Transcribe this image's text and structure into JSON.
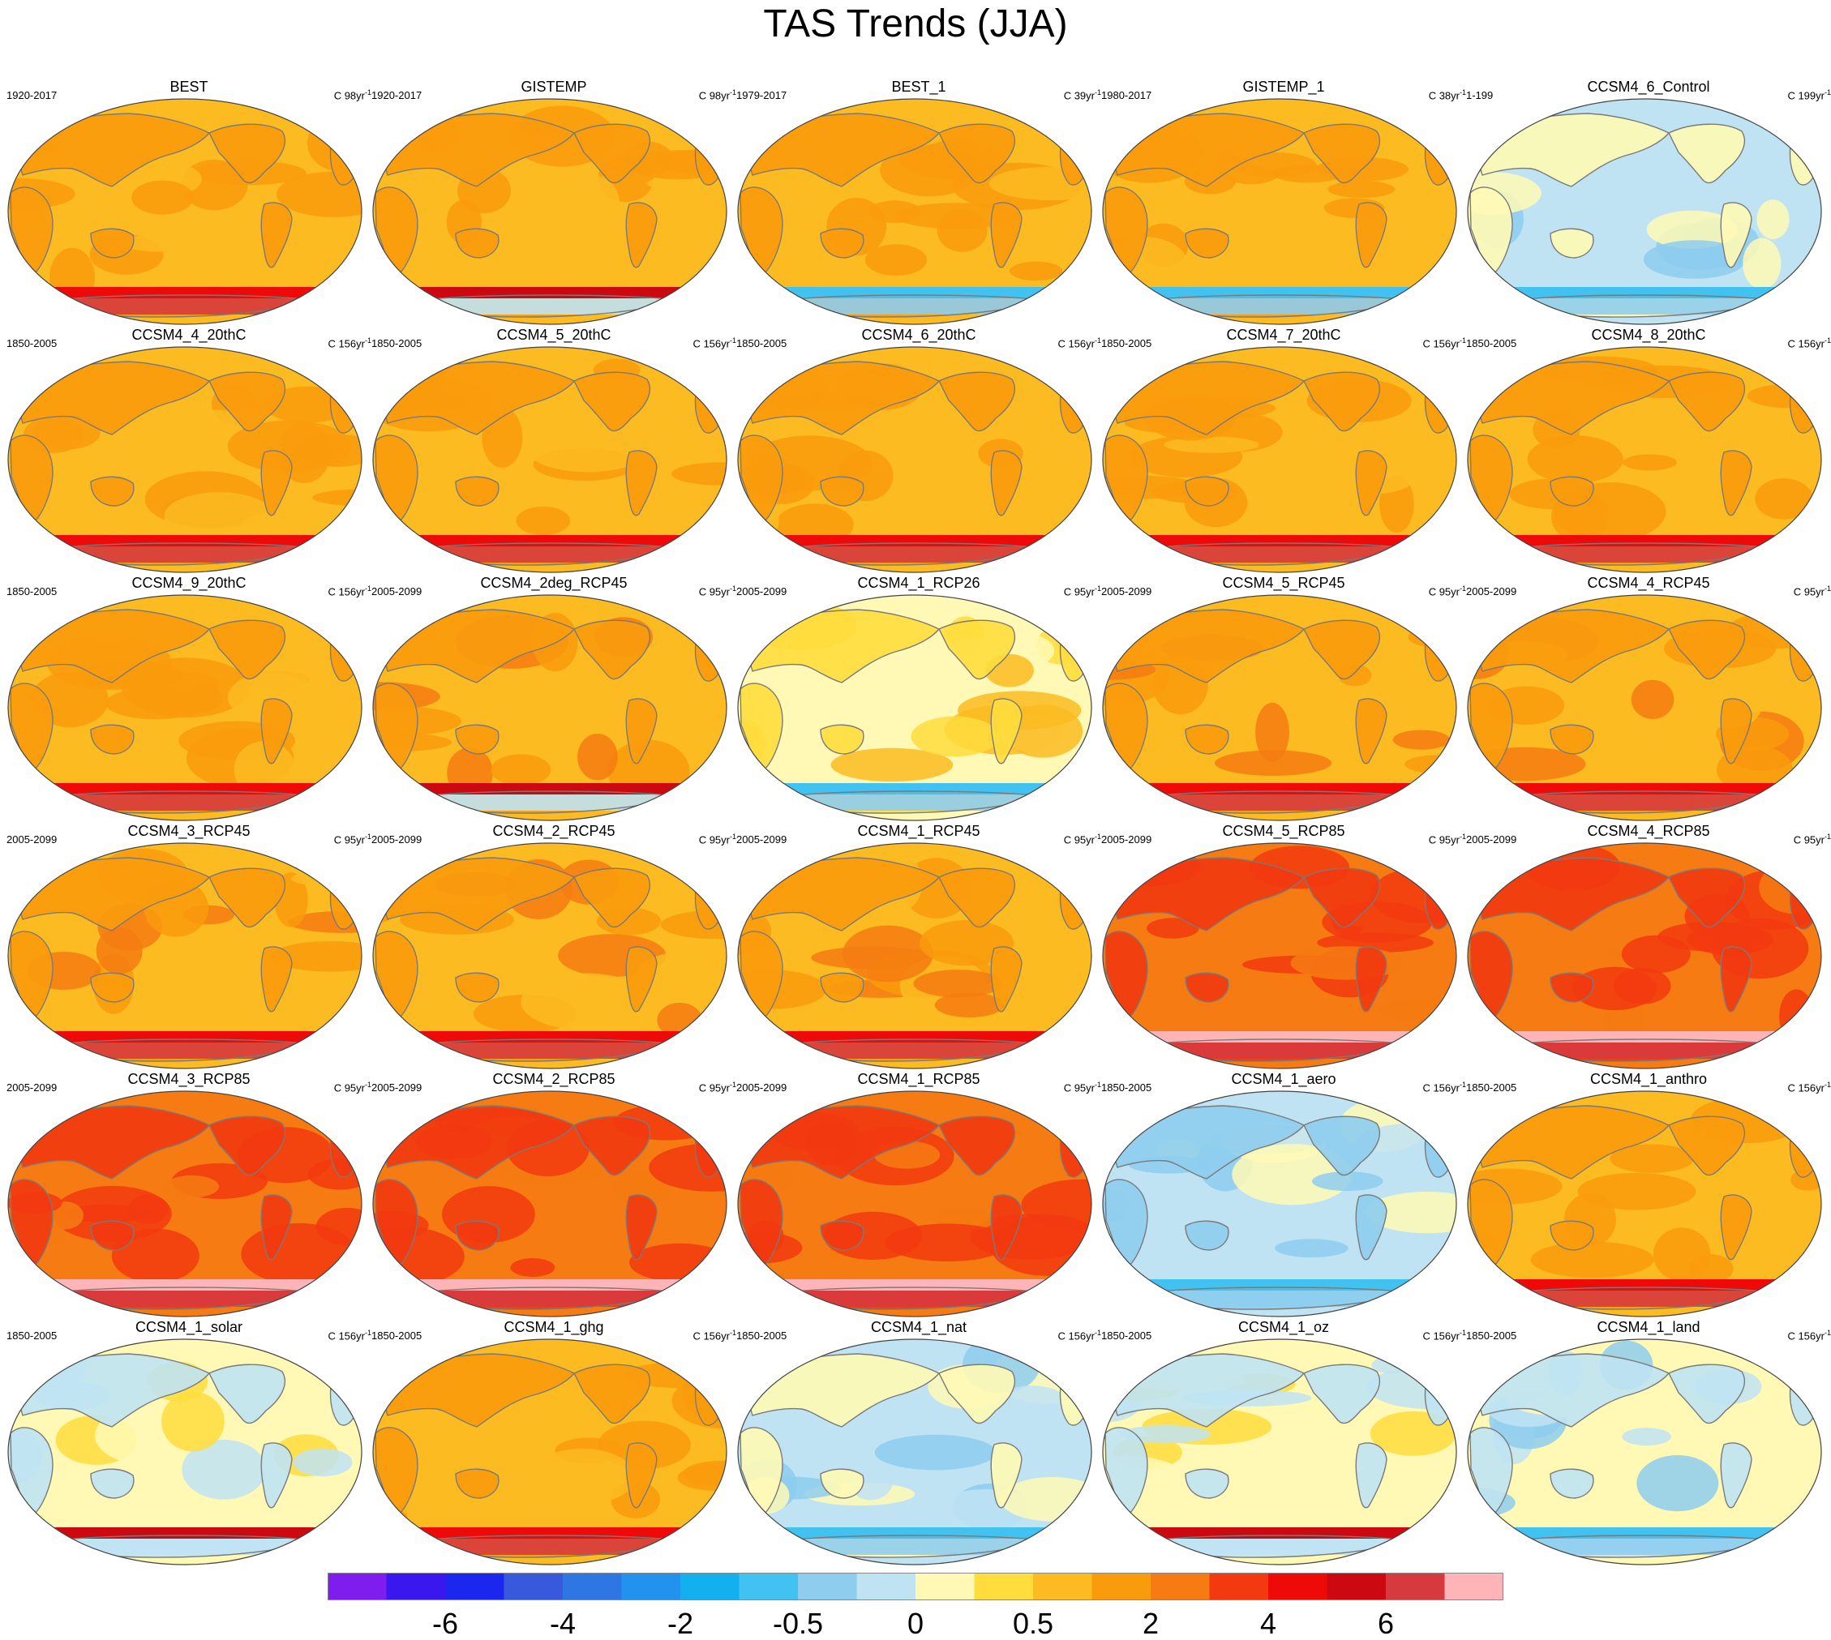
{
  "title": "TAS Trends (JJA)",
  "palette": {
    "ocean_outline": "#444444",
    "coast": "#7a7a7a",
    "bins": [
      "#7f1dee",
      "#3a17ee",
      "#1b27ef",
      "#3959dd",
      "#2d76e4",
      "#2193ef",
      "#12b0ef",
      "#42c2f1",
      "#8ecdee",
      "#bfe3f3",
      "#fff9b5",
      "#ffdd3d",
      "#fbbb21",
      "#f99b0c",
      "#f57b12",
      "#f2390f",
      "#ef0a0a",
      "#cc0810",
      "#d73a3e",
      "#ffb5b8"
    ]
  },
  "colorbar": {
    "labels": [
      {
        "text": "-6",
        "edge": 2
      },
      {
        "text": "-4",
        "edge": 4
      },
      {
        "text": "-2",
        "edge": 6
      },
      {
        "text": "-0.5",
        "edge": 8
      },
      {
        "text": "0",
        "edge": 10
      },
      {
        "text": "0.5",
        "edge": 12
      },
      {
        "text": "2",
        "edge": 14
      },
      {
        "text": "4",
        "edge": 16
      },
      {
        "text": "6",
        "edge": 18
      }
    ]
  },
  "panels": [
    {
      "title": "BEST",
      "period": "1920-2017",
      "units": "C 98yr",
      "units_exp": "-1",
      "base": 12,
      "land": 13,
      "hi": 13,
      "south": "red"
    },
    {
      "title": "GISTEMP",
      "period": "1920-2017",
      "units": "C 98yr",
      "units_exp": "-1",
      "base": 12,
      "land": 13,
      "hi": 13,
      "south": "mixed"
    },
    {
      "title": "BEST_1",
      "period": "1979-2017",
      "units": "C 39yr",
      "units_exp": "-1",
      "base": 12,
      "land": 13,
      "hi": 13,
      "south": "blue"
    },
    {
      "title": "GISTEMP_1",
      "period": "1980-2017",
      "units": "C 38yr",
      "units_exp": "-1",
      "base": 12,
      "land": 13,
      "hi": 13,
      "south": "blue"
    },
    {
      "title": "CCSM4_6_Control",
      "period": "1-199",
      "units": "C 199yr",
      "units_exp": "-1",
      "base": 9,
      "land": 10,
      "hi": 8,
      "south": "blue"
    },
    {
      "title": "CCSM4_4_20thC",
      "period": "1850-2005",
      "units": "C 156yr",
      "units_exp": "-1",
      "base": 12,
      "land": 13,
      "hi": 13,
      "south": "red"
    },
    {
      "title": "CCSM4_5_20thC",
      "period": "1850-2005",
      "units": "C 156yr",
      "units_exp": "-1",
      "base": 12,
      "land": 13,
      "hi": 13,
      "south": "red"
    },
    {
      "title": "CCSM4_6_20thC",
      "period": "1850-2005",
      "units": "C 156yr",
      "units_exp": "-1",
      "base": 12,
      "land": 13,
      "hi": 13,
      "south": "red"
    },
    {
      "title": "CCSM4_7_20thC",
      "period": "1850-2005",
      "units": "C 156yr",
      "units_exp": "-1",
      "base": 12,
      "land": 13,
      "hi": 13,
      "south": "red"
    },
    {
      "title": "CCSM4_8_20thC",
      "period": "1850-2005",
      "units": "C 156yr",
      "units_exp": "-1",
      "base": 12,
      "land": 13,
      "hi": 13,
      "south": "red"
    },
    {
      "title": "CCSM4_9_20thC",
      "period": "1850-2005",
      "units": "C 156yr",
      "units_exp": "-1",
      "base": 12,
      "land": 13,
      "hi": 13,
      "south": "red"
    },
    {
      "title": "CCSM4_2deg_RCP45",
      "period": "2005-2099",
      "units": "C 95yr",
      "units_exp": "-1",
      "base": 12,
      "land": 13,
      "hi": 14,
      "south": "mixed"
    },
    {
      "title": "CCSM4_1_RCP26",
      "period": "2005-2099",
      "units": "C 95yr",
      "units_exp": "-1",
      "base": 10,
      "land": 11,
      "hi": 12,
      "south": "blue"
    },
    {
      "title": "CCSM4_5_RCP45",
      "period": "2005-2099",
      "units": "C 95yr",
      "units_exp": "-1",
      "base": 12,
      "land": 13,
      "hi": 14,
      "south": "red"
    },
    {
      "title": "CCSM4_4_RCP45",
      "period": "2005-2099",
      "units": "C 95yr",
      "units_exp": "-1",
      "base": 12,
      "land": 13,
      "hi": 14,
      "south": "red"
    },
    {
      "title": "CCSM4_3_RCP45",
      "period": "2005-2099",
      "units": "C 95yr",
      "units_exp": "-1",
      "base": 12,
      "land": 13,
      "hi": 14,
      "south": "red"
    },
    {
      "title": "CCSM4_2_RCP45",
      "period": "2005-2099",
      "units": "C 95yr",
      "units_exp": "-1",
      "base": 12,
      "land": 13,
      "hi": 14,
      "south": "red"
    },
    {
      "title": "CCSM4_1_RCP45",
      "period": "2005-2099",
      "units": "C 95yr",
      "units_exp": "-1",
      "base": 12,
      "land": 13,
      "hi": 14,
      "south": "red"
    },
    {
      "title": "CCSM4_5_RCP85",
      "period": "2005-2099",
      "units": "C 95yr",
      "units_exp": "-1",
      "base": 14,
      "land": 15,
      "hi": 15,
      "south": "pink"
    },
    {
      "title": "CCSM4_4_RCP85",
      "period": "2005-2099",
      "units": "C 95yr",
      "units_exp": "-1",
      "base": 14,
      "land": 15,
      "hi": 15,
      "south": "pink"
    },
    {
      "title": "CCSM4_3_RCP85",
      "period": "2005-2099",
      "units": "C 95yr",
      "units_exp": "-1",
      "base": 14,
      "land": 15,
      "hi": 15,
      "south": "pink"
    },
    {
      "title": "CCSM4_2_RCP85",
      "period": "2005-2099",
      "units": "C 95yr",
      "units_exp": "-1",
      "base": 14,
      "land": 15,
      "hi": 15,
      "south": "pink"
    },
    {
      "title": "CCSM4_1_RCP85",
      "period": "2005-2099",
      "units": "C 95yr",
      "units_exp": "-1",
      "base": 14,
      "land": 15,
      "hi": 15,
      "south": "pink"
    },
    {
      "title": "CCSM4_1_aero",
      "period": "1850-2005",
      "units": "C 156yr",
      "units_exp": "-1",
      "base": 9,
      "land": 8,
      "hi": 10,
      "south": "blue"
    },
    {
      "title": "CCSM4_1_anthro",
      "period": "1850-2005",
      "units": "C 156yr",
      "units_exp": "-1",
      "base": 12,
      "land": 13,
      "hi": 13,
      "south": "red"
    },
    {
      "title": "CCSM4_1_solar",
      "period": "1850-2005",
      "units": "C 156yr",
      "units_exp": "-1",
      "base": 10,
      "land": 9,
      "hi": 11,
      "south": "mixed"
    },
    {
      "title": "CCSM4_1_ghg",
      "period": "1850-2005",
      "units": "C 156yr",
      "units_exp": "-1",
      "base": 12,
      "land": 13,
      "hi": 13,
      "south": "red"
    },
    {
      "title": "CCSM4_1_nat",
      "period": "1850-2005",
      "units": "C 156yr",
      "units_exp": "-1",
      "base": 9,
      "land": 10,
      "hi": 8,
      "south": "blue"
    },
    {
      "title": "CCSM4_1_oz",
      "period": "1850-2005",
      "units": "C 156yr",
      "units_exp": "-1",
      "base": 10,
      "land": 9,
      "hi": 11,
      "south": "mixed"
    },
    {
      "title": "CCSM4_1_land",
      "period": "1850-2005",
      "units": "C 156yr",
      "units_exp": "-1",
      "base": 10,
      "land": 9,
      "hi": 8,
      "south": "blue"
    }
  ]
}
